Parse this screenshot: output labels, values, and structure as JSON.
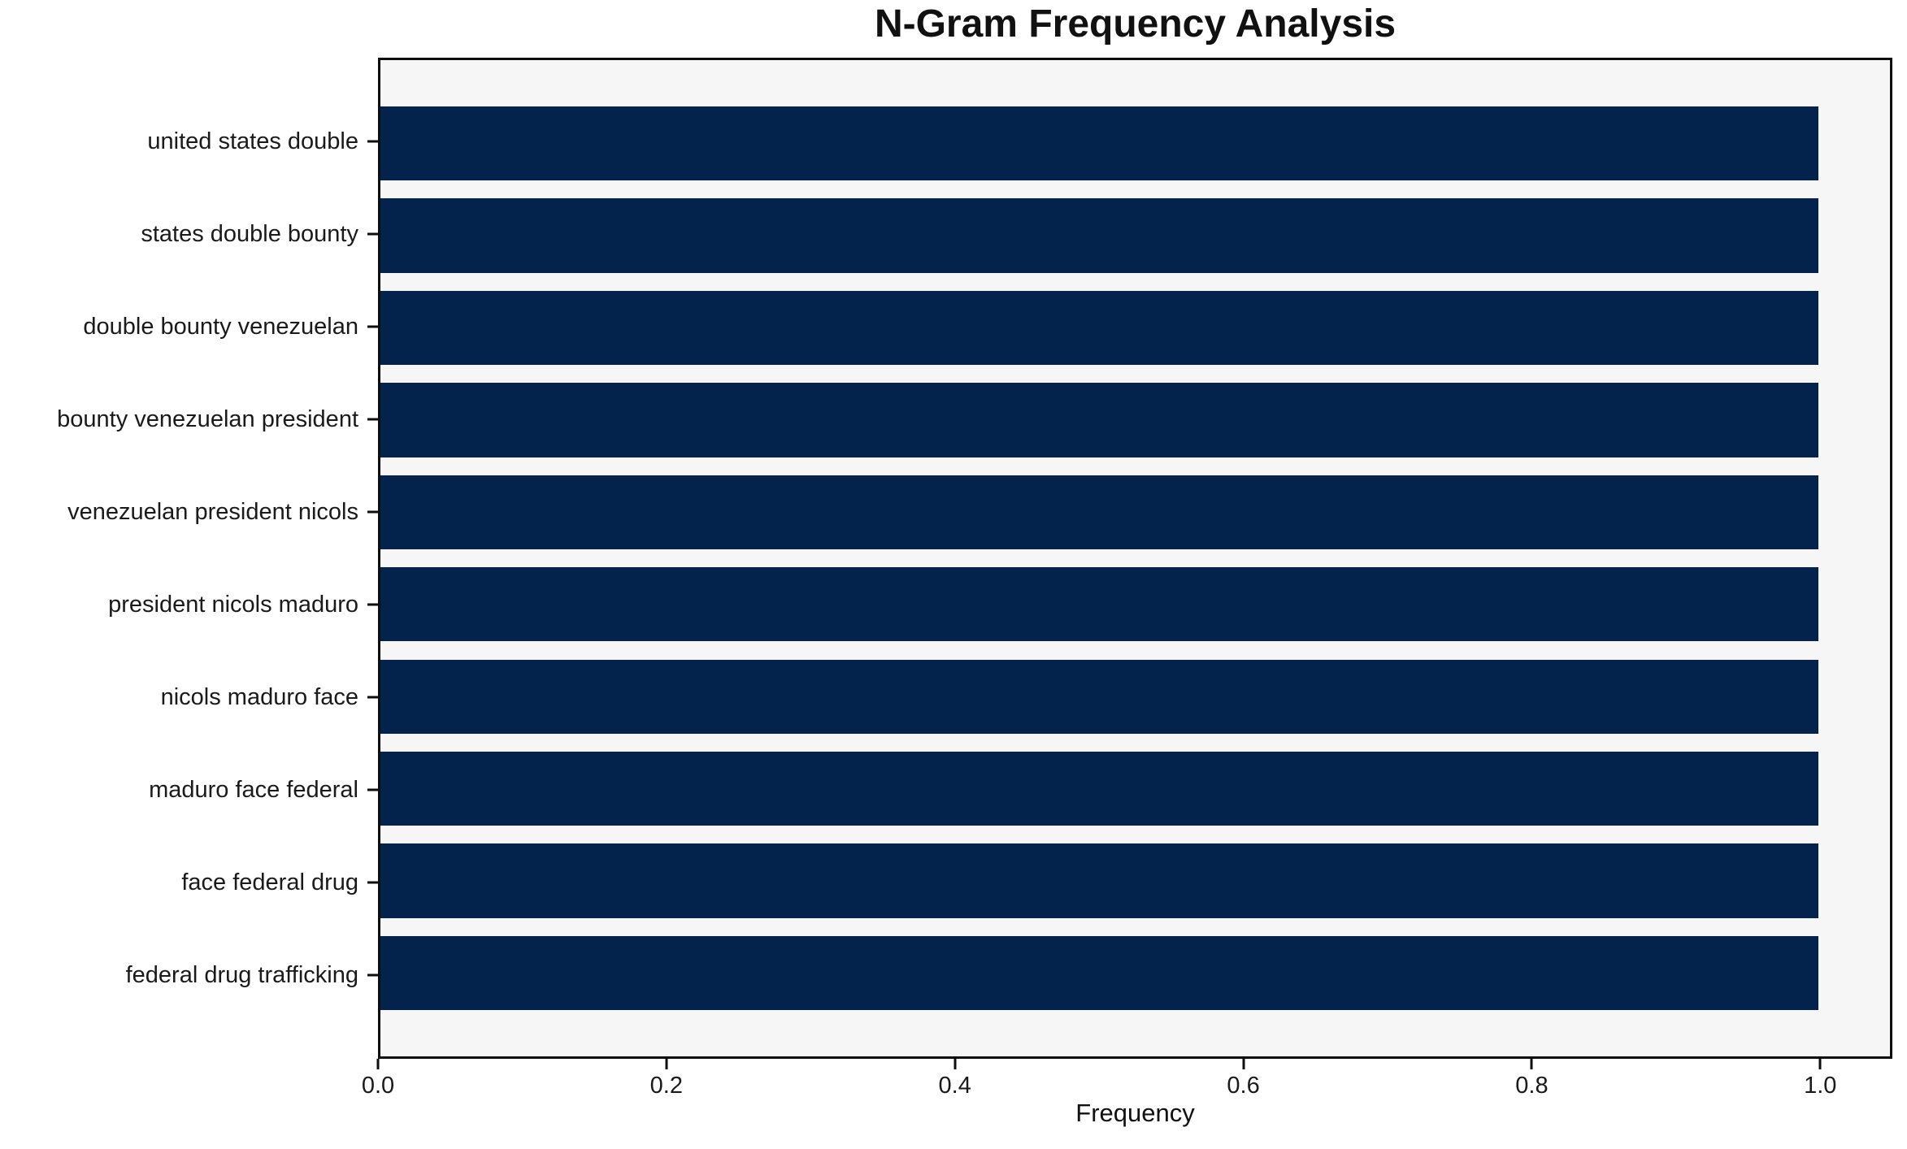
{
  "chart_data": {
    "type": "bar",
    "orientation": "horizontal",
    "title": "N-Gram Frequency Analysis",
    "xlabel": "Frequency",
    "ylabel": "",
    "categories": [
      "united states double",
      "states double bounty",
      "double bounty venezuelan",
      "bounty venezuelan president",
      "venezuelan president nicols",
      "president nicols maduro",
      "nicols maduro face",
      "maduro face federal",
      "face federal drug",
      "federal drug trafficking"
    ],
    "values": [
      1.0,
      1.0,
      1.0,
      1.0,
      1.0,
      1.0,
      1.0,
      1.0,
      1.0,
      1.0
    ],
    "xlim": [
      0.0,
      1.05
    ],
    "xtick_values": [
      0.0,
      0.2,
      0.4,
      0.6,
      0.8,
      1.0
    ],
    "xtick_labels": [
      "0.0",
      "0.2",
      "0.4",
      "0.6",
      "0.8",
      "1.0"
    ],
    "grid": false,
    "legend": "none",
    "bar_color": "#04234c",
    "plot_background": "#f6f6f7",
    "figure_background": "#ffffff",
    "axis_color": "#0e0e0e"
  }
}
